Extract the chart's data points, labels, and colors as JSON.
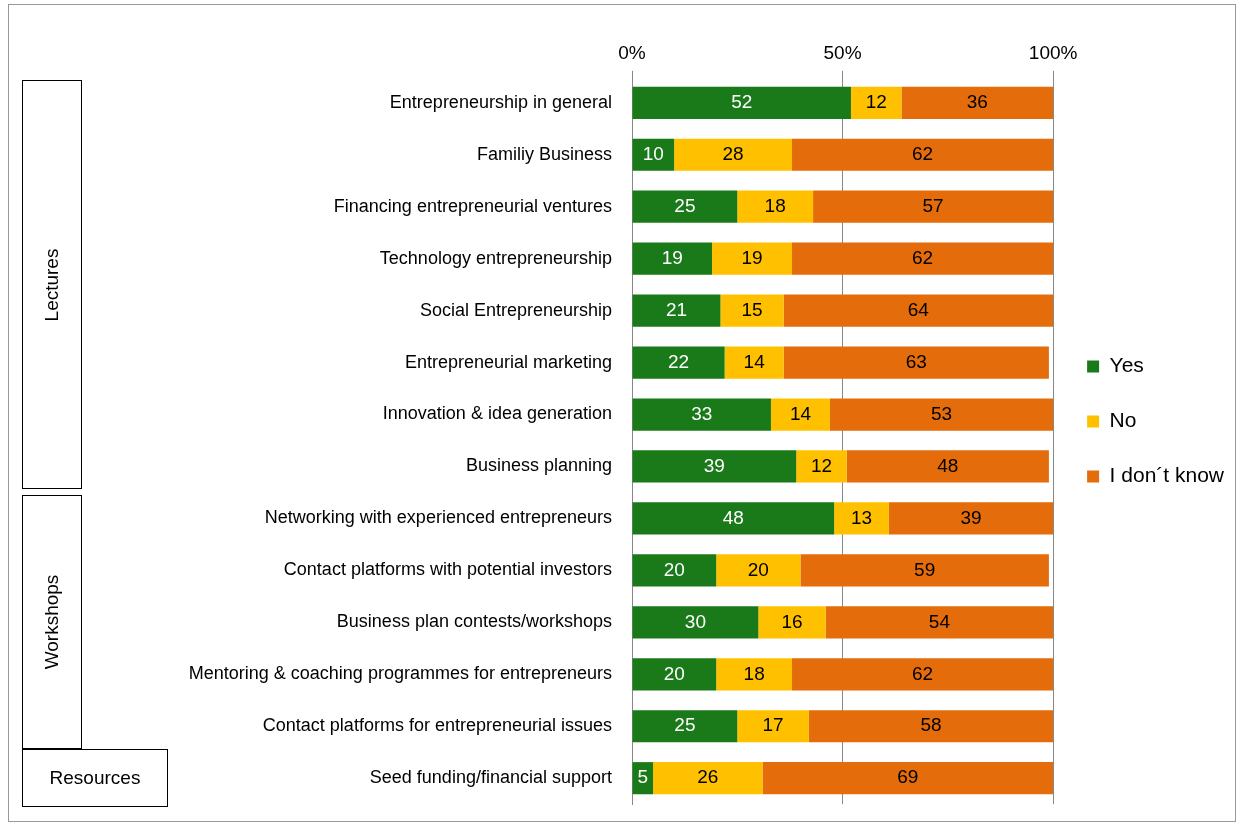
{
  "chart_data": {
    "type": "bar",
    "orientation": "horizontal",
    "stacked": true,
    "data_labels": true,
    "grid": "x",
    "legend": "right",
    "categories": [
      "Entrepreneurship in general",
      "Familiy Business",
      "Financing entrepreneurial ventures",
      "Technology entrepreneurship",
      "Social Entrepreneurship",
      "Entrepreneurial marketing",
      "Innovation & idea generation",
      "Business planning",
      "Networking with experienced entrepreneurs",
      "Contact platforms with potential investors",
      "Business plan contests/workshops",
      "Mentoring & coaching programmes for entrepreneurs",
      "Contact platforms for entrepreneurial issues",
      "Seed funding/financial support"
    ],
    "series": [
      {
        "name": "Yes",
        "color": "#1a7a1a",
        "values": [
          52,
          10,
          25,
          19,
          21,
          22,
          33,
          39,
          48,
          20,
          30,
          20,
          25,
          5
        ]
      },
      {
        "name": "No",
        "color": "#ffc000",
        "values": [
          12,
          28,
          18,
          19,
          15,
          14,
          14,
          12,
          13,
          20,
          16,
          18,
          17,
          26
        ]
      },
      {
        "name": "I don´t know",
        "color": "#e46c0a",
        "values": [
          36,
          62,
          57,
          62,
          64,
          63,
          53,
          48,
          39,
          59,
          54,
          62,
          58,
          69
        ]
      }
    ],
    "xlim": [
      0,
      100
    ],
    "xticks": [
      {
        "value": 0,
        "label": "0%"
      },
      {
        "value": 50,
        "label": "50%"
      },
      {
        "value": 100,
        "label": "100%"
      }
    ],
    "annotations": [
      "Lectures",
      "Workshops",
      "Resources"
    ]
  }
}
